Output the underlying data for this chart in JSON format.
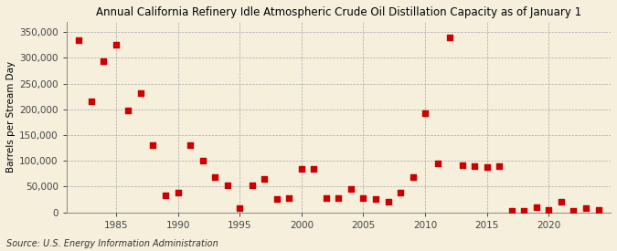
{
  "title": "Annual California Refinery Idle Atmospheric Crude Oil Distillation Capacity as of January 1",
  "ylabel": "Barrels per Stream Day",
  "source": "Source: U.S. Energy Information Administration",
  "background_color": "#f5efdc",
  "plot_bg_color": "#f5efdc",
  "marker_color": "#cc0000",
  "years": [
    1982,
    1983,
    1984,
    1985,
    1986,
    1987,
    1988,
    1989,
    1990,
    1991,
    1992,
    1993,
    1994,
    1995,
    1996,
    1997,
    1998,
    1999,
    2000,
    2001,
    2002,
    2003,
    2004,
    2005,
    2006,
    2007,
    2008,
    2009,
    2010,
    2011,
    2012,
    2013,
    2014,
    2015,
    2016,
    2017,
    2018,
    2019,
    2020,
    2021,
    2022,
    2023,
    2024
  ],
  "values": [
    335000,
    215000,
    293000,
    325000,
    197000,
    232000,
    130000,
    33000,
    38000,
    130000,
    100000,
    68000,
    52000,
    8000,
    52000,
    65000,
    25000,
    27000,
    85000,
    85000,
    27000,
    28000,
    45000,
    27000,
    25000,
    20000,
    38000,
    68000,
    193000,
    95000,
    340000,
    92000,
    90000,
    88000,
    90000,
    2000,
    3000,
    10000,
    5000,
    20000,
    3000,
    8000,
    5000
  ],
  "xlim": [
    1981,
    2025
  ],
  "ylim": [
    0,
    370000
  ],
  "yticks": [
    0,
    50000,
    100000,
    150000,
    200000,
    250000,
    300000,
    350000
  ],
  "xticks": [
    1985,
    1990,
    1995,
    2000,
    2005,
    2010,
    2015,
    2020
  ],
  "title_fontsize": 8.5,
  "ylabel_fontsize": 7.5,
  "tick_fontsize": 7.5,
  "source_fontsize": 7.0,
  "marker_size": 14
}
